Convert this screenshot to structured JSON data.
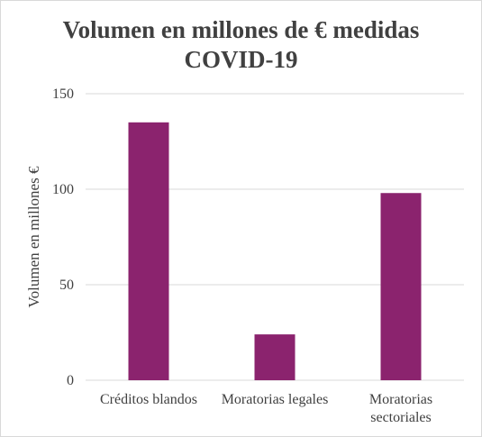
{
  "chart_data": {
    "type": "bar",
    "title_lines": [
      "Volumen en millones de € medidas",
      "COVID-19"
    ],
    "ylabel": "Volumen en millones €",
    "xlabel": "",
    "categories": [
      [
        "Créditos blandos"
      ],
      [
        "Moratorias legales"
      ],
      [
        "Moratorias",
        "sectoriales"
      ]
    ],
    "values": [
      135,
      24,
      98
    ],
    "ylim": [
      0,
      150
    ],
    "yticks": [
      "0",
      "50",
      "100",
      "150"
    ],
    "ytick_values": [
      0,
      50,
      100,
      150
    ],
    "grid": true,
    "legend": "none",
    "bar_color": "#8b236e",
    "grid_color": "#d9d9d9",
    "text_color": "#404040"
  }
}
